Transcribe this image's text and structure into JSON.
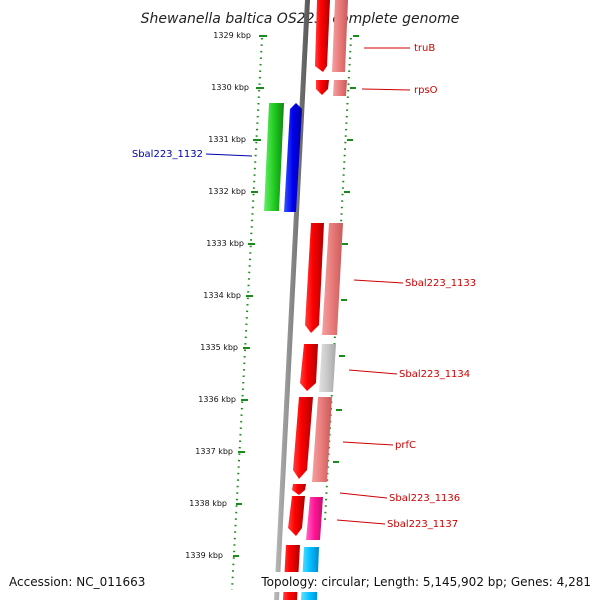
{
  "title": "Shewanella baltica OS223, complete genome",
  "footer": {
    "accession": "Accession: NC_011663",
    "summary": "Topology: circular; Length: 5,145,902 bp; Genes: 4,281"
  },
  "ruler": {
    "ticks": [
      "1329 kbp",
      "1330 kbp",
      "1331 kbp",
      "1332 kbp",
      "1333 kbp",
      "1334 kbp",
      "1335 kbp",
      "1336 kbp",
      "1337 kbp",
      "1338 kbp",
      "1339 kbp"
    ]
  },
  "colors": {
    "axis": "#808080",
    "ruler": "#1a8a1a",
    "label_red": "#cc0000",
    "label_blue": "#0000aa"
  },
  "genes": [
    {
      "label": "truB",
      "color": "#cc0000"
    },
    {
      "label": "rpsO",
      "color": "#cc0000"
    },
    {
      "label": "Sbal223_1132",
      "color": "#0000aa"
    },
    {
      "label": "Sbal223_1133",
      "color": "#cc0000"
    },
    {
      "label": "Sbal223_1134",
      "color": "#cc0000"
    },
    {
      "label": "prfC",
      "color": "#cc0000"
    },
    {
      "label": "Sbal223_1136",
      "color": "#cc0000"
    },
    {
      "label": "Sbal223_1137",
      "color": "#cc0000"
    }
  ]
}
